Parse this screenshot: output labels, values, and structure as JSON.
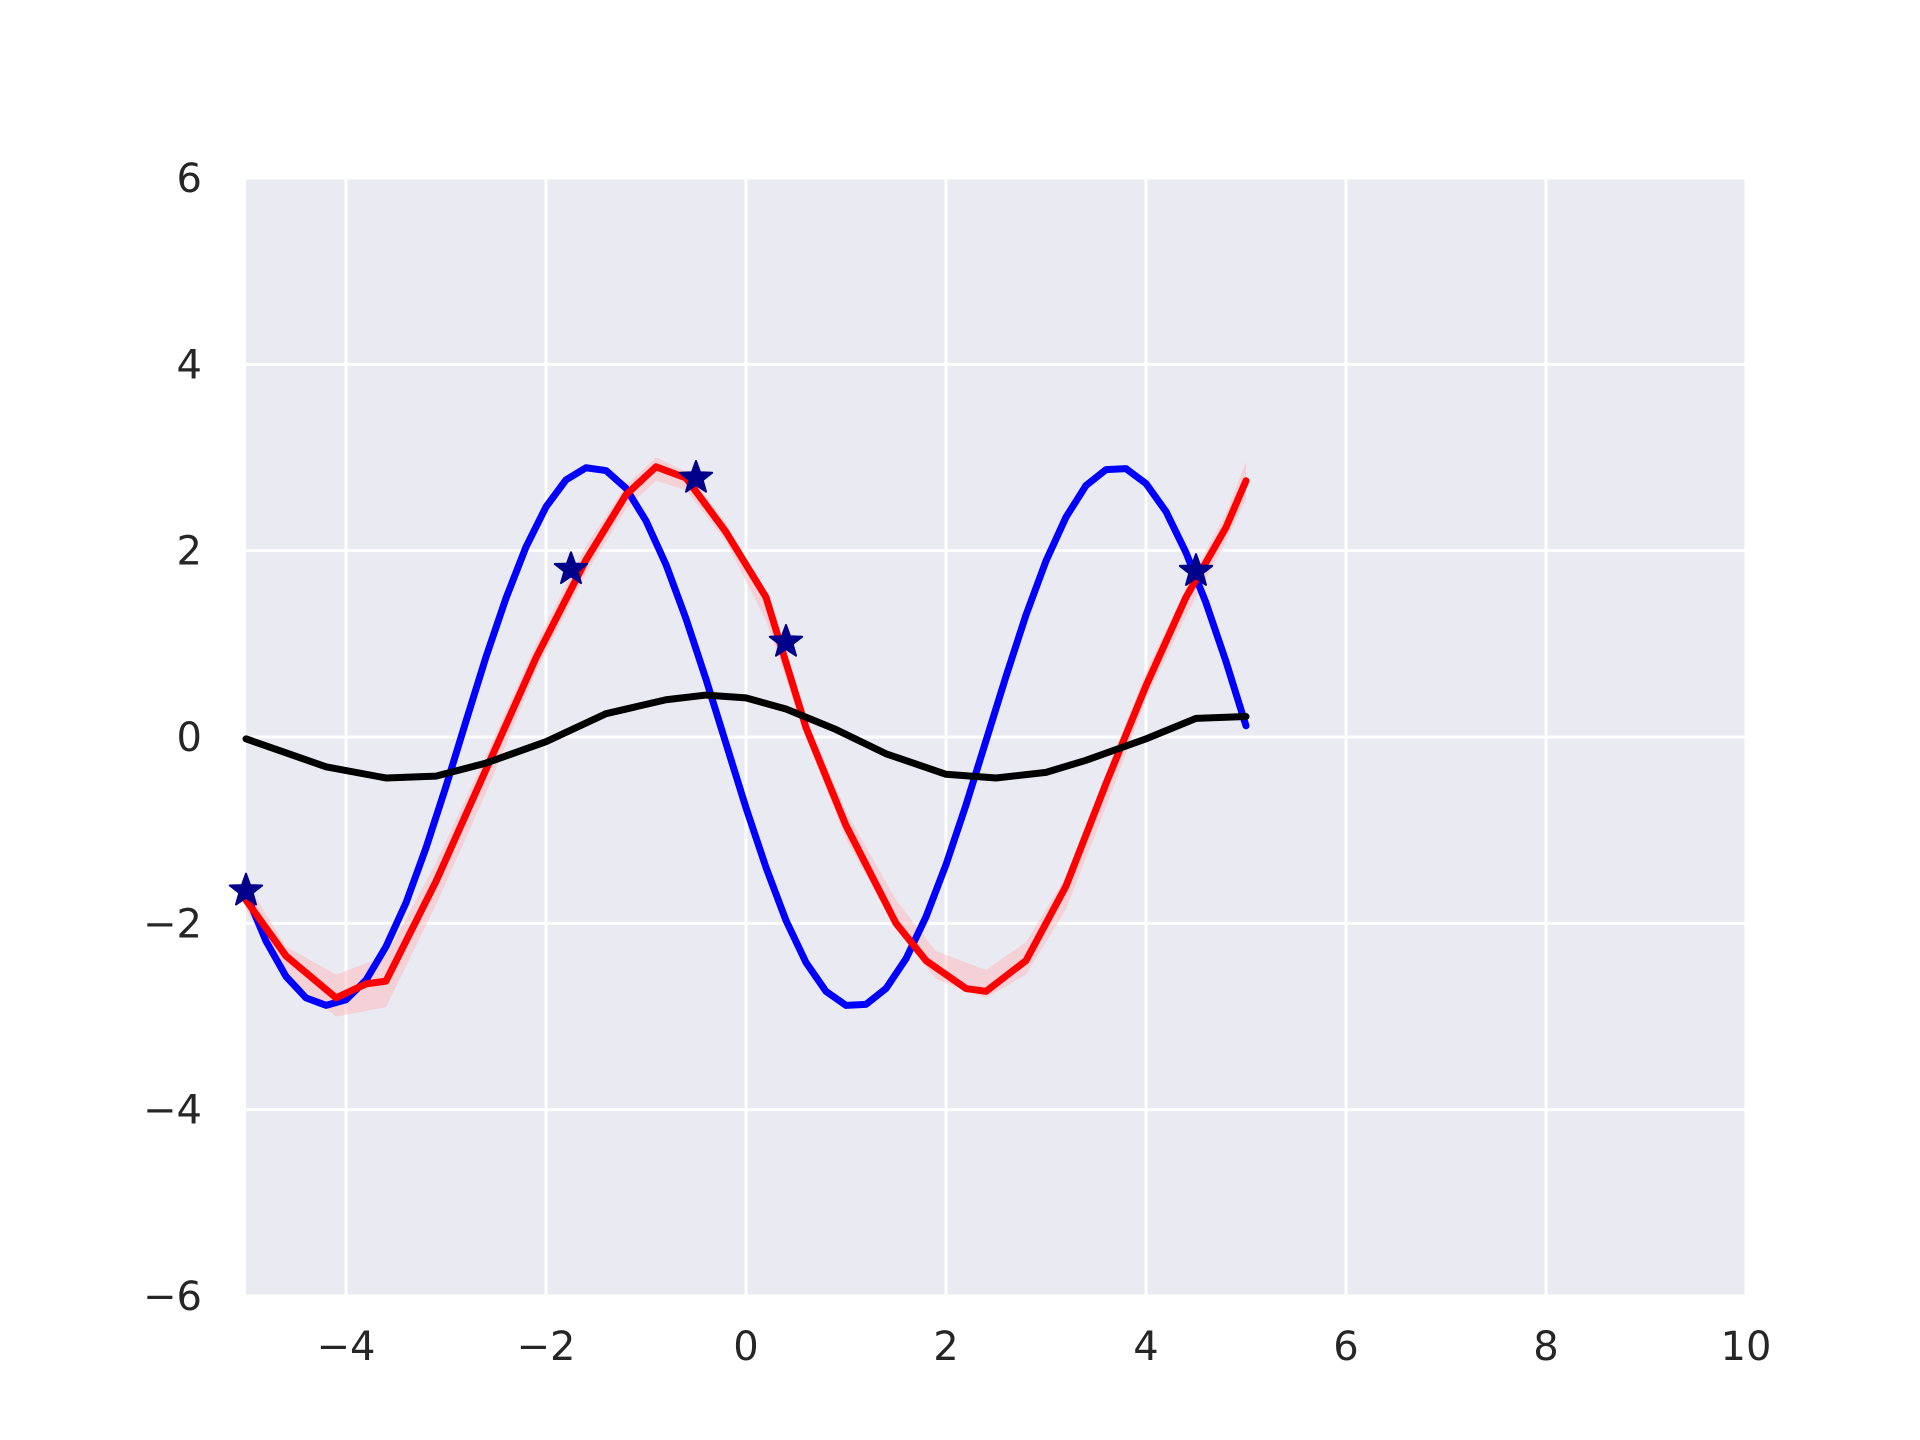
{
  "chart_data": {
    "type": "line",
    "xlim": [
      -5,
      10
    ],
    "ylim": [
      -6,
      6
    ],
    "x_ticks": [
      -4,
      -2,
      0,
      2,
      4,
      6,
      8,
      10
    ],
    "x_tick_labels": [
      "−4",
      "−2",
      "0",
      "2",
      "4",
      "6",
      "8",
      "10"
    ],
    "y_ticks": [
      -6,
      -4,
      -2,
      0,
      2,
      4,
      6
    ],
    "y_tick_labels": [
      "−6",
      "−4",
      "−2",
      "0",
      "2",
      "4",
      "6"
    ],
    "grid": true,
    "background_color": "#eaeaf2",
    "grid_color": "#ffffff",
    "series": [
      {
        "kind": "band",
        "color": "#ffb3b3",
        "x": [
          -5.0,
          -4.6,
          -4.1,
          -3.6,
          -3.1,
          -2.6,
          -2.1,
          -1.6,
          -1.2,
          -0.9,
          -0.6,
          -0.2,
          0.2,
          0.6,
          1.0,
          1.5,
          1.9,
          2.4,
          2.8,
          3.2,
          3.6,
          4.0,
          4.4,
          4.8,
          5.0
        ],
        "upper": [
          -1.55,
          -2.25,
          -2.55,
          -2.35,
          -1.35,
          -0.2,
          1.0,
          2.05,
          2.7,
          3.0,
          2.85,
          2.3,
          1.45,
          0.2,
          -0.8,
          -1.75,
          -2.3,
          -2.5,
          -2.2,
          -1.5,
          -0.4,
          0.7,
          1.6,
          2.4,
          2.95
        ],
        "lower": [
          -1.85,
          -2.55,
          -3.0,
          -2.9,
          -1.8,
          -0.6,
          0.7,
          1.75,
          2.45,
          2.75,
          2.65,
          2.1,
          1.25,
          0.0,
          -1.1,
          -2.05,
          -2.6,
          -2.8,
          -2.55,
          -1.85,
          -0.75,
          0.4,
          1.3,
          2.1,
          2.55
        ]
      },
      {
        "kind": "line",
        "color": "#0000ff",
        "x": [
          -5.0,
          -4.8,
          -4.6,
          -4.4,
          -4.2,
          -4.0,
          -3.8,
          -3.6,
          -3.4,
          -3.2,
          -3.0,
          -2.8,
          -2.6,
          -2.4,
          -2.2,
          -2.0,
          -1.8,
          -1.6,
          -1.4,
          -1.2,
          -1.0,
          -0.8,
          -0.6,
          -0.4,
          -0.2,
          0.0,
          0.2,
          0.4,
          0.6,
          0.8,
          1.0,
          1.2,
          1.4,
          1.6,
          1.8,
          2.0,
          2.2,
          2.4,
          2.6,
          2.8,
          3.0,
          3.2,
          3.4,
          3.6,
          3.8,
          4.0,
          4.2,
          4.4,
          4.6,
          4.8,
          5.0
        ],
        "y": [
          -1.68,
          -2.19,
          -2.57,
          -2.8,
          -2.88,
          -2.82,
          -2.61,
          -2.25,
          -1.78,
          -1.19,
          -0.53,
          0.17,
          0.86,
          1.49,
          2.04,
          2.47,
          2.76,
          2.89,
          2.86,
          2.67,
          2.32,
          1.85,
          1.27,
          0.62,
          -0.07,
          -0.76,
          -1.4,
          -1.97,
          -2.42,
          -2.73,
          -2.88,
          -2.87,
          -2.7,
          -2.38,
          -1.93,
          -1.37,
          -0.73,
          -0.04,
          0.65,
          1.31,
          1.89,
          2.36,
          2.7,
          2.87,
          2.88,
          2.72,
          2.42,
          1.98,
          1.44,
          0.81,
          0.12
        ]
      },
      {
        "kind": "line",
        "color": "#ff0000",
        "x": [
          -5.0,
          -4.6,
          -4.1,
          -3.8,
          -3.6,
          -3.1,
          -2.6,
          -2.1,
          -1.6,
          -1.2,
          -0.9,
          -0.6,
          -0.2,
          0.2,
          0.6,
          1.0,
          1.5,
          1.8,
          2.2,
          2.4,
          2.8,
          3.2,
          3.6,
          4.0,
          4.4,
          4.8,
          5.0
        ],
        "y": [
          -1.75,
          -2.35,
          -2.8,
          -2.65,
          -2.62,
          -1.55,
          -0.35,
          0.85,
          1.9,
          2.6,
          2.9,
          2.78,
          2.2,
          1.5,
          0.1,
          -0.95,
          -2.0,
          -2.4,
          -2.7,
          -2.73,
          -2.4,
          -1.6,
          -0.5,
          0.55,
          1.5,
          2.25,
          2.75
        ]
      },
      {
        "kind": "line",
        "color": "#000000",
        "x": [
          -5.0,
          -4.6,
          -4.2,
          -3.6,
          -3.1,
          -2.6,
          -2.0,
          -1.4,
          -0.8,
          -0.4,
          0.0,
          0.4,
          0.9,
          1.4,
          2.0,
          2.5,
          3.0,
          3.4,
          4.0,
          4.5,
          5.0
        ],
        "y": [
          -0.02,
          -0.17,
          -0.32,
          -0.44,
          -0.42,
          -0.28,
          -0.05,
          0.25,
          0.4,
          0.45,
          0.42,
          0.3,
          0.08,
          -0.18,
          -0.4,
          -0.44,
          -0.38,
          -0.25,
          -0.02,
          0.2,
          0.22
        ]
      },
      {
        "kind": "scatter",
        "marker": "star",
        "color": "#00008b",
        "x": [
          -5.0,
          -1.75,
          -0.5,
          0.4,
          4.5
        ],
        "y": [
          -1.65,
          1.8,
          2.78,
          1.02,
          1.78
        ]
      }
    ]
  }
}
